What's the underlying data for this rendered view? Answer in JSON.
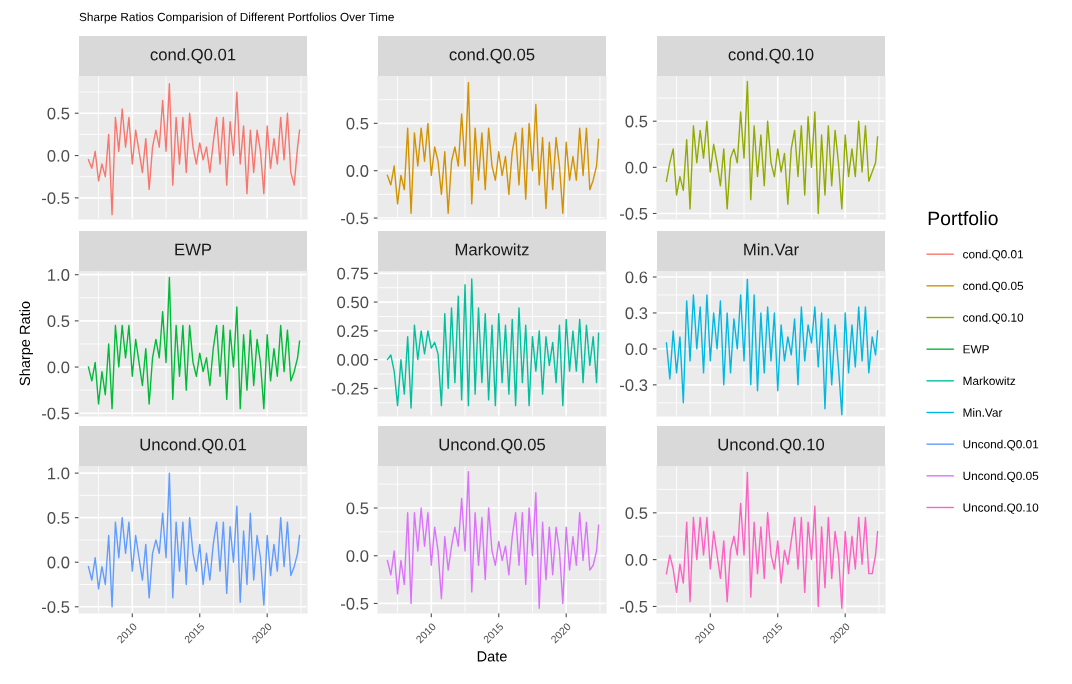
{
  "chart_data": [
    {
      "type": "line",
      "title": "Sharpe Ratios Comparision of Different Portfolios Over Time",
      "subtitle": "cond.Q0.01",
      "legend": "right",
      "legend_title": "Portfolio",
      "grid": true,
      "tick_labels": "y",
      "xlim": [
        2006.05,
        2022.95
      ],
      "xticks": [
        2010,
        2015,
        2020
      ],
      "ylim": [
        -0.75,
        0.94
      ],
      "yticks": [
        {
          "value": -0.5,
          "label": "-0.5"
        },
        {
          "value": 0,
          "label": "0.0"
        },
        {
          "value": 0.5,
          "label": "0.5"
        }
      ],
      "x": [
        2006.75,
        2007.0,
        2007.25,
        2007.5,
        2007.75,
        2008.0,
        2008.25,
        2008.5,
        2008.75,
        2009.0,
        2009.25,
        2009.5,
        2009.75,
        2010.0,
        2010.25,
        2010.5,
        2010.75,
        2011.0,
        2011.25,
        2011.5,
        2011.75,
        2012.0,
        2012.25,
        2012.5,
        2012.75,
        2013.0,
        2013.25,
        2013.5,
        2013.75,
        2014.0,
        2014.25,
        2014.5,
        2014.75,
        2015.0,
        2015.25,
        2015.5,
        2015.75,
        2016.0,
        2016.25,
        2016.5,
        2016.75,
        2017.0,
        2017.25,
        2017.5,
        2017.75,
        2018.0,
        2018.25,
        2018.5,
        2018.75,
        2019.0,
        2019.25,
        2019.5,
        2019.75,
        2020.0,
        2020.25,
        2020.5,
        2020.75,
        2021.0,
        2021.25,
        2021.5,
        2021.75,
        2022.0,
        2022.25,
        2022.4
      ],
      "series": [
        {
          "name": "cond.Q0.01",
          "color": "#F8766D",
          "values": [
            -0.05,
            -0.15,
            0.05,
            -0.3,
            -0.1,
            -0.25,
            0.25,
            -0.7,
            0.45,
            0.05,
            0.55,
            0.1,
            0.45,
            -0.1,
            0.3,
            0.05,
            -0.2,
            0.2,
            -0.4,
            0.1,
            0.3,
            0.1,
            0.65,
            0.05,
            0.85,
            -0.35,
            0.45,
            -0.1,
            0.45,
            -0.2,
            0.5,
            0.1,
            -0.1,
            0.15,
            -0.05,
            0.1,
            -0.2,
            0.15,
            0.45,
            -0.1,
            0.45,
            -0.35,
            0.4,
            0.0,
            0.75,
            -0.1,
            0.35,
            -0.45,
            0.3,
            -0.2,
            0.3,
            0.05,
            -0.45,
            0.35,
            -0.15,
            0.2,
            -0.1,
            0.45,
            -0.05,
            0.5,
            -0.2,
            -0.35,
            0.1,
            0.3
          ]
        }
      ]
    },
    {
      "type": "line",
      "subtitle": "cond.Q0.05",
      "legend": "right",
      "grid": true,
      "tick_labels": "y",
      "xlim": [
        2006.05,
        2022.95
      ],
      "xticks": [
        2010,
        2015,
        2020
      ],
      "ylim": [
        -0.51,
        1.0
      ],
      "yticks": [
        {
          "value": -0.5,
          "label": "-0.5"
        },
        {
          "value": 0,
          "label": "0.0"
        },
        {
          "value": 0.5,
          "label": "0.5"
        }
      ],
      "x": [
        2006.75,
        2007.0,
        2007.25,
        2007.5,
        2007.75,
        2008.0,
        2008.25,
        2008.5,
        2008.75,
        2009.0,
        2009.25,
        2009.5,
        2009.75,
        2010.0,
        2010.25,
        2010.5,
        2010.75,
        2011.0,
        2011.25,
        2011.5,
        2011.75,
        2012.0,
        2012.25,
        2012.5,
        2012.75,
        2013.0,
        2013.25,
        2013.5,
        2013.75,
        2014.0,
        2014.25,
        2014.5,
        2014.75,
        2015.0,
        2015.25,
        2015.5,
        2015.75,
        2016.0,
        2016.25,
        2016.5,
        2016.75,
        2017.0,
        2017.25,
        2017.5,
        2017.75,
        2018.0,
        2018.25,
        2018.5,
        2018.75,
        2019.0,
        2019.25,
        2019.5,
        2019.75,
        2020.0,
        2020.25,
        2020.5,
        2020.75,
        2021.0,
        2021.25,
        2021.5,
        2021.75,
        2022.0,
        2022.25,
        2022.4
      ],
      "series": [
        {
          "name": "cond.Q0.05",
          "color": "#D39200",
          "values": [
            -0.05,
            -0.15,
            0.05,
            -0.35,
            -0.05,
            -0.2,
            0.45,
            -0.45,
            0.4,
            0.05,
            0.45,
            0.1,
            0.5,
            -0.05,
            0.25,
            0.1,
            -0.25,
            0.2,
            -0.45,
            0.1,
            0.25,
            0.05,
            0.6,
            0.05,
            0.93,
            -0.35,
            0.45,
            -0.1,
            0.4,
            -0.2,
            0.45,
            0.05,
            -0.1,
            0.2,
            -0.05,
            0.15,
            -0.25,
            0.2,
            0.4,
            -0.15,
            0.45,
            -0.3,
            0.5,
            0.0,
            0.7,
            -0.15,
            0.35,
            -0.4,
            0.3,
            -0.2,
            0.35,
            0.05,
            -0.45,
            0.3,
            -0.1,
            0.15,
            -0.1,
            0.45,
            -0.05,
            0.45,
            -0.2,
            -0.1,
            0.05,
            0.33
          ]
        }
      ]
    },
    {
      "type": "line",
      "subtitle": "cond.Q0.10",
      "legend": "right",
      "grid": true,
      "tick_labels": "y",
      "xlim": [
        2006.05,
        2022.95
      ],
      "xticks": [
        2010,
        2015,
        2020
      ],
      "ylim": [
        -0.56,
        0.99
      ],
      "yticks": [
        {
          "value": -0.5,
          "label": "-0.5"
        },
        {
          "value": 0,
          "label": "0.0"
        },
        {
          "value": 0.5,
          "label": "0.5"
        }
      ],
      "x": [
        2006.75,
        2007.0,
        2007.25,
        2007.5,
        2007.75,
        2008.0,
        2008.25,
        2008.5,
        2008.75,
        2009.0,
        2009.25,
        2009.5,
        2009.75,
        2010.0,
        2010.25,
        2010.5,
        2010.75,
        2011.0,
        2011.25,
        2011.5,
        2011.75,
        2012.0,
        2012.25,
        2012.5,
        2012.75,
        2013.0,
        2013.25,
        2013.5,
        2013.75,
        2014.0,
        2014.25,
        2014.5,
        2014.75,
        2015.0,
        2015.25,
        2015.5,
        2015.75,
        2016.0,
        2016.25,
        2016.5,
        2016.75,
        2017.0,
        2017.25,
        2017.5,
        2017.75,
        2018.0,
        2018.25,
        2018.5,
        2018.75,
        2019.0,
        2019.25,
        2019.5,
        2019.75,
        2020.0,
        2020.25,
        2020.5,
        2020.75,
        2021.0,
        2021.25,
        2021.5,
        2021.75,
        2022.0,
        2022.25,
        2022.4
      ],
      "series": [
        {
          "name": "cond.Q0.10",
          "color": "#93AA00",
          "values": [
            -0.15,
            0.05,
            0.2,
            -0.3,
            -0.1,
            -0.25,
            0.3,
            -0.45,
            0.45,
            0.05,
            0.4,
            0.1,
            0.5,
            -0.05,
            0.25,
            0.05,
            -0.2,
            0.2,
            -0.45,
            0.1,
            0.2,
            0.05,
            0.6,
            0.1,
            0.93,
            -0.35,
            0.45,
            -0.1,
            0.35,
            -0.2,
            0.5,
            0.05,
            -0.1,
            0.2,
            -0.05,
            0.15,
            -0.4,
            0.2,
            0.4,
            -0.1,
            0.45,
            -0.3,
            0.55,
            0.0,
            0.6,
            -0.5,
            0.35,
            -0.3,
            0.45,
            -0.2,
            0.4,
            0.05,
            -0.45,
            0.35,
            -0.1,
            0.2,
            -0.1,
            0.5,
            -0.05,
            0.45,
            -0.15,
            -0.05,
            0.05,
            0.33
          ]
        }
      ]
    },
    {
      "type": "line",
      "subtitle": "EWP",
      "ylabel": "Sharpe Ratio",
      "legend": "right",
      "grid": true,
      "tick_labels": "y",
      "xlim": [
        2006.05,
        2022.95
      ],
      "xticks": [
        2010,
        2015,
        2020
      ],
      "ylim": [
        -0.53,
        1.04
      ],
      "yticks": [
        {
          "value": -0.5,
          "label": "-0.5"
        },
        {
          "value": 0,
          "label": "0.0"
        },
        {
          "value": 0.5,
          "label": "0.5"
        },
        {
          "value": 1.0,
          "label": "1.0"
        }
      ],
      "x": [
        2006.75,
        2007.0,
        2007.25,
        2007.5,
        2007.75,
        2008.0,
        2008.25,
        2008.5,
        2008.75,
        2009.0,
        2009.25,
        2009.5,
        2009.75,
        2010.0,
        2010.25,
        2010.5,
        2010.75,
        2011.0,
        2011.25,
        2011.5,
        2011.75,
        2012.0,
        2012.25,
        2012.5,
        2012.75,
        2013.0,
        2013.25,
        2013.5,
        2013.75,
        2014.0,
        2014.25,
        2014.5,
        2014.75,
        2015.0,
        2015.25,
        2015.5,
        2015.75,
        2016.0,
        2016.25,
        2016.5,
        2016.75,
        2017.0,
        2017.25,
        2017.5,
        2017.75,
        2018.0,
        2018.25,
        2018.5,
        2018.75,
        2019.0,
        2019.25,
        2019.5,
        2019.75,
        2020.0,
        2020.25,
        2020.5,
        2020.75,
        2021.0,
        2021.25,
        2021.5,
        2021.75,
        2022.0,
        2022.25,
        2022.4
      ],
      "series": [
        {
          "name": "EWP",
          "color": "#00BA38",
          "values": [
            0.0,
            -0.15,
            0.05,
            -0.4,
            -0.05,
            -0.3,
            0.25,
            -0.45,
            0.45,
            0.0,
            0.45,
            0.1,
            0.45,
            -0.1,
            0.3,
            0.05,
            -0.2,
            0.2,
            -0.4,
            0.1,
            0.3,
            0.1,
            0.6,
            0.05,
            0.97,
            -0.35,
            0.45,
            -0.1,
            0.45,
            -0.25,
            0.45,
            0.05,
            -0.1,
            0.15,
            -0.05,
            0.1,
            -0.2,
            0.2,
            0.45,
            -0.1,
            0.45,
            -0.35,
            0.4,
            0.0,
            0.65,
            -0.45,
            0.35,
            -0.25,
            0.4,
            -0.2,
            0.3,
            0.05,
            -0.45,
            0.35,
            -0.15,
            0.2,
            -0.1,
            0.45,
            -0.05,
            0.4,
            -0.15,
            -0.05,
            0.1,
            0.28
          ]
        }
      ]
    },
    {
      "type": "line",
      "subtitle": "Markowitz",
      "legend": "right",
      "grid": true,
      "tick_labels": "y",
      "xlim": [
        2006.05,
        2022.95
      ],
      "xticks": [
        2010,
        2015,
        2020
      ],
      "ylim": [
        -0.49,
        0.77
      ],
      "yticks": [
        {
          "value": -0.25,
          "label": "-0.25"
        },
        {
          "value": 0,
          "label": "0.00"
        },
        {
          "value": 0.25,
          "label": "0.25"
        },
        {
          "value": 0.5,
          "label": "0.50"
        },
        {
          "value": 0.75,
          "label": "0.75"
        }
      ],
      "x": [
        2006.75,
        2007.0,
        2007.25,
        2007.5,
        2007.75,
        2008.0,
        2008.25,
        2008.5,
        2008.75,
        2009.0,
        2009.25,
        2009.5,
        2009.75,
        2010.0,
        2010.25,
        2010.5,
        2010.75,
        2011.0,
        2011.25,
        2011.5,
        2011.75,
        2012.0,
        2012.25,
        2012.5,
        2012.75,
        2013.0,
        2013.25,
        2013.5,
        2013.75,
        2014.0,
        2014.25,
        2014.5,
        2014.75,
        2015.0,
        2015.25,
        2015.5,
        2015.75,
        2016.0,
        2016.25,
        2016.5,
        2016.75,
        2017.0,
        2017.25,
        2017.5,
        2017.75,
        2018.0,
        2018.25,
        2018.5,
        2018.75,
        2019.0,
        2019.25,
        2019.5,
        2019.75,
        2020.0,
        2020.25,
        2020.5,
        2020.75,
        2021.0,
        2021.25,
        2021.5,
        2021.75,
        2022.0,
        2022.25,
        2022.4
      ],
      "series": [
        {
          "name": "Markowitz",
          "color": "#00C19F",
          "values": [
            0.0,
            0.04,
            -0.1,
            -0.4,
            0.0,
            -0.3,
            0.2,
            -0.42,
            0.3,
            0.0,
            0.25,
            0.05,
            0.25,
            0.1,
            0.15,
            0.05,
            -0.4,
            0.4,
            -0.25,
            0.45,
            -0.2,
            0.55,
            -0.35,
            0.65,
            -0.4,
            0.7,
            -0.3,
            0.45,
            -0.2,
            0.4,
            -0.35,
            0.3,
            -0.4,
            0.4,
            -0.2,
            0.3,
            -0.3,
            0.35,
            -0.4,
            0.45,
            -0.2,
            0.3,
            -0.4,
            0.2,
            -0.1,
            0.25,
            -0.3,
            0.2,
            -0.05,
            0.15,
            -0.2,
            0.3,
            -0.4,
            0.35,
            -0.1,
            0.25,
            -0.1,
            0.35,
            -0.2,
            0.3,
            -0.05,
            0.2,
            -0.2,
            0.23
          ]
        }
      ]
    },
    {
      "type": "line",
      "subtitle": "Min.Var",
      "legend": "right",
      "grid": true,
      "tick_labels": "y",
      "xlim": [
        2006.05,
        2022.95
      ],
      "xticks": [
        2010,
        2015,
        2020
      ],
      "ylim": [
        -0.56,
        0.65
      ],
      "yticks": [
        {
          "value": -0.3,
          "label": "-0.3"
        },
        {
          "value": 0,
          "label": "0.0"
        },
        {
          "value": 0.3,
          "label": "0.3"
        },
        {
          "value": 0.6,
          "label": "0.6"
        }
      ],
      "x": [
        2006.75,
        2007.0,
        2007.25,
        2007.5,
        2007.75,
        2008.0,
        2008.25,
        2008.5,
        2008.75,
        2009.0,
        2009.25,
        2009.5,
        2009.75,
        2010.0,
        2010.25,
        2010.5,
        2010.75,
        2011.0,
        2011.25,
        2011.5,
        2011.75,
        2012.0,
        2012.25,
        2012.5,
        2012.75,
        2013.0,
        2013.25,
        2013.5,
        2013.75,
        2014.0,
        2014.25,
        2014.5,
        2014.75,
        2015.0,
        2015.25,
        2015.5,
        2015.75,
        2016.0,
        2016.25,
        2016.5,
        2016.75,
        2017.0,
        2017.25,
        2017.5,
        2017.75,
        2018.0,
        2018.25,
        2018.5,
        2018.75,
        2019.0,
        2019.25,
        2019.5,
        2019.75,
        2020.0,
        2020.25,
        2020.5,
        2020.75,
        2021.0,
        2021.25,
        2021.5,
        2021.75,
        2022.0,
        2022.25,
        2022.4
      ],
      "series": [
        {
          "name": "Min.Var",
          "color": "#00B9E3",
          "values": [
            0.05,
            -0.25,
            0.15,
            -0.2,
            0.1,
            -0.45,
            0.4,
            -0.1,
            0.45,
            0.0,
            0.35,
            -0.2,
            0.45,
            -0.1,
            0.3,
            0.0,
            0.4,
            -0.3,
            0.3,
            -0.2,
            0.25,
            0.0,
            0.45,
            -0.1,
            0.58,
            -0.3,
            0.45,
            -0.35,
            0.3,
            -0.2,
            0.35,
            -0.1,
            0.3,
            -0.35,
            0.2,
            -0.1,
            0.1,
            -0.05,
            0.25,
            -0.3,
            0.35,
            -0.1,
            0.2,
            0.05,
            0.35,
            -0.15,
            0.3,
            -0.5,
            0.25,
            -0.3,
            0.2,
            -0.15,
            -0.55,
            0.3,
            -0.2,
            0.2,
            -0.15,
            0.35,
            -0.1,
            0.35,
            -0.2,
            0.1,
            -0.05,
            0.15
          ]
        }
      ]
    },
    {
      "type": "line",
      "subtitle": "Uncond.Q0.01",
      "legend": "right",
      "grid": true,
      "xlim": [
        2006.05,
        2022.95
      ],
      "xticks": [
        2010,
        2015,
        2020
      ],
      "ylim": [
        -0.57,
        1.08
      ],
      "yticks": [
        {
          "value": -0.5,
          "label": "-0.5"
        },
        {
          "value": 0,
          "label": "0.0"
        },
        {
          "value": 0.5,
          "label": "0.5"
        },
        {
          "value": 1.0,
          "label": "1.0"
        }
      ],
      "x": [
        2006.75,
        2007.0,
        2007.25,
        2007.5,
        2007.75,
        2008.0,
        2008.25,
        2008.5,
        2008.75,
        2009.0,
        2009.25,
        2009.5,
        2009.75,
        2010.0,
        2010.25,
        2010.5,
        2010.75,
        2011.0,
        2011.25,
        2011.5,
        2011.75,
        2012.0,
        2012.25,
        2012.5,
        2012.75,
        2013.0,
        2013.25,
        2013.5,
        2013.75,
        2014.0,
        2014.25,
        2014.5,
        2014.75,
        2015.0,
        2015.25,
        2015.5,
        2015.75,
        2016.0,
        2016.25,
        2016.5,
        2016.75,
        2017.0,
        2017.25,
        2017.5,
        2017.75,
        2018.0,
        2018.25,
        2018.5,
        2018.75,
        2019.0,
        2019.25,
        2019.5,
        2019.75,
        2020.0,
        2020.25,
        2020.5,
        2020.75,
        2021.0,
        2021.25,
        2021.5,
        2021.75,
        2022.0,
        2022.25,
        2022.4
      ],
      "series": [
        {
          "name": "Uncond.Q0.01",
          "color": "#619CFF",
          "values": [
            -0.05,
            -0.2,
            0.05,
            -0.3,
            -0.05,
            -0.25,
            0.3,
            -0.5,
            0.45,
            0.05,
            0.5,
            0.1,
            0.45,
            -0.1,
            0.3,
            0.05,
            -0.2,
            0.2,
            -0.4,
            0.1,
            0.25,
            0.1,
            0.55,
            0.05,
            1.0,
            -0.4,
            0.45,
            -0.1,
            0.45,
            -0.25,
            0.5,
            0.1,
            -0.1,
            0.2,
            -0.25,
            0.1,
            -0.2,
            0.2,
            0.45,
            -0.1,
            0.45,
            -0.35,
            0.4,
            0.0,
            0.63,
            -0.45,
            0.35,
            -0.25,
            0.55,
            -0.2,
            0.3,
            0.05,
            -0.48,
            0.3,
            -0.15,
            0.2,
            -0.1,
            0.5,
            -0.05,
            0.45,
            -0.15,
            -0.05,
            0.1,
            0.3
          ]
        }
      ]
    },
    {
      "type": "line",
      "subtitle": "Uncond.Q0.05",
      "xlabel": "Date",
      "legend": "right",
      "grid": true,
      "xlim": [
        2006.05,
        2022.95
      ],
      "xticks": [
        2010,
        2015,
        2020
      ],
      "ylim": [
        -0.6,
        0.94
      ],
      "yticks": [
        {
          "value": -0.5,
          "label": "-0.5"
        },
        {
          "value": 0,
          "label": "0.0"
        },
        {
          "value": 0.5,
          "label": "0.5"
        }
      ],
      "x": [
        2006.75,
        2007.0,
        2007.25,
        2007.5,
        2007.75,
        2008.0,
        2008.25,
        2008.5,
        2008.75,
        2009.0,
        2009.25,
        2009.5,
        2009.75,
        2010.0,
        2010.25,
        2010.5,
        2010.75,
        2011.0,
        2011.25,
        2011.5,
        2011.75,
        2012.0,
        2012.25,
        2012.5,
        2012.75,
        2013.0,
        2013.25,
        2013.5,
        2013.75,
        2014.0,
        2014.25,
        2014.5,
        2014.75,
        2015.0,
        2015.25,
        2015.5,
        2015.75,
        2016.0,
        2016.25,
        2016.5,
        2016.75,
        2017.0,
        2017.25,
        2017.5,
        2017.75,
        2018.0,
        2018.25,
        2018.5,
        2018.75,
        2019.0,
        2019.25,
        2019.5,
        2019.75,
        2020.0,
        2020.25,
        2020.5,
        2020.75,
        2021.0,
        2021.25,
        2021.5,
        2021.75,
        2022.0,
        2022.25,
        2022.4
      ],
      "series": [
        {
          "name": "Uncond.Q0.05",
          "color": "#DB72FB",
          "values": [
            -0.05,
            -0.2,
            0.05,
            -0.4,
            -0.05,
            -0.3,
            0.45,
            -0.5,
            0.45,
            0.05,
            0.5,
            0.1,
            0.45,
            -0.1,
            0.3,
            0.05,
            -0.45,
            0.2,
            -0.15,
            0.1,
            0.3,
            0.1,
            0.6,
            0.05,
            0.88,
            -0.38,
            0.45,
            -0.1,
            0.4,
            -0.25,
            0.5,
            0.05,
            -0.1,
            0.15,
            -0.05,
            0.1,
            -0.2,
            0.2,
            0.45,
            -0.1,
            0.45,
            -0.3,
            0.5,
            0.0,
            0.66,
            -0.55,
            0.35,
            -0.25,
            0.3,
            -0.2,
            0.3,
            0.05,
            -0.5,
            0.3,
            -0.15,
            0.2,
            -0.1,
            0.45,
            -0.05,
            0.35,
            -0.15,
            -0.1,
            0.05,
            0.32
          ]
        }
      ]
    },
    {
      "type": "line",
      "subtitle": "Uncond.Q0.10",
      "legend": "right",
      "grid": true,
      "xlim": [
        2006.05,
        2022.95
      ],
      "xticks": [
        2010,
        2015,
        2020
      ],
      "ylim": [
        -0.57,
        1.0
      ],
      "yticks": [
        {
          "value": -0.5,
          "label": "-0.5"
        },
        {
          "value": 0,
          "label": "0.0"
        },
        {
          "value": 0.5,
          "label": "0.5"
        }
      ],
      "x": [
        2006.75,
        2007.0,
        2007.25,
        2007.5,
        2007.75,
        2008.0,
        2008.25,
        2008.5,
        2008.75,
        2009.0,
        2009.25,
        2009.5,
        2009.75,
        2010.0,
        2010.25,
        2010.5,
        2010.75,
        2011.0,
        2011.25,
        2011.5,
        2011.75,
        2012.0,
        2012.25,
        2012.5,
        2012.75,
        2013.0,
        2013.25,
        2013.5,
        2013.75,
        2014.0,
        2014.25,
        2014.5,
        2014.75,
        2015.0,
        2015.25,
        2015.5,
        2015.75,
        2016.0,
        2016.25,
        2016.5,
        2016.75,
        2017.0,
        2017.25,
        2017.5,
        2017.75,
        2018.0,
        2018.25,
        2018.5,
        2018.75,
        2019.0,
        2019.25,
        2019.5,
        2019.75,
        2020.0,
        2020.25,
        2020.5,
        2020.75,
        2021.0,
        2021.25,
        2021.5,
        2021.75,
        2022.0,
        2022.25,
        2022.4
      ],
      "series": [
        {
          "name": "Uncond.Q0.10",
          "color": "#FF61C3",
          "values": [
            -0.15,
            0.05,
            -0.1,
            -0.35,
            -0.05,
            -0.25,
            0.4,
            -0.45,
            0.45,
            0.0,
            0.45,
            0.05,
            0.45,
            -0.1,
            0.3,
            0.05,
            -0.2,
            0.2,
            -0.45,
            0.1,
            0.25,
            0.05,
            0.6,
            0.05,
            0.93,
            -0.4,
            0.4,
            -0.15,
            0.35,
            -0.2,
            0.5,
            0.05,
            -0.1,
            0.2,
            -0.25,
            0.1,
            -0.05,
            0.2,
            0.45,
            -0.1,
            0.45,
            -0.35,
            0.4,
            0.0,
            0.57,
            -0.5,
            0.35,
            -0.3,
            0.45,
            -0.2,
            0.3,
            0.05,
            -0.52,
            0.3,
            -0.15,
            0.25,
            -0.1,
            0.45,
            -0.05,
            0.45,
            -0.15,
            -0.15,
            0.05,
            0.3
          ]
        }
      ]
    }
  ]
}
